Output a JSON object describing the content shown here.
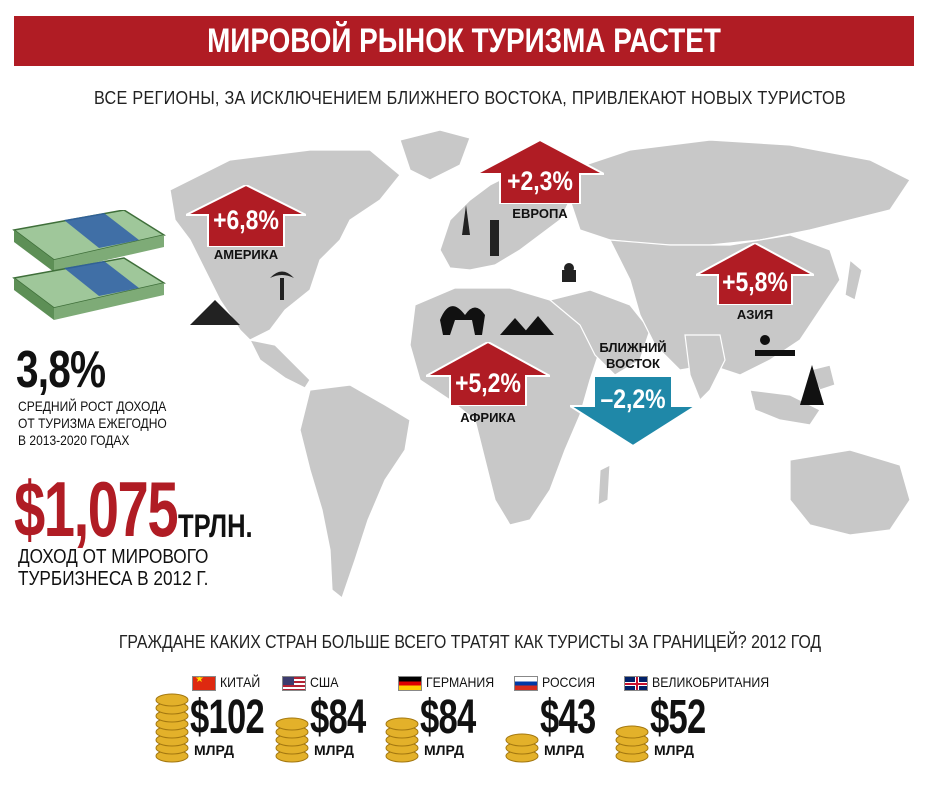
{
  "header": {
    "title": "МИРОВОЙ РЫНОК ТУРИЗМА РАСТЕТ",
    "subtitle": "ВСЕ РЕГИОНЫ, ЗА ИСКЛЮЧЕНИЕМ БЛИЖНЕГО ВОСТОКА, ПРИВЛЕКАЮТ НОВЫХ ТУРИСТОВ"
  },
  "colors": {
    "accent_red": "#b01c24",
    "decline_blue": "#1f88a8",
    "map_gray": "#c8c8c8",
    "gold": "#e3b12a"
  },
  "regions": [
    {
      "label": "АМЕРИКА",
      "value": "+6,8%",
      "direction": "up"
    },
    {
      "label": "ЕВРОПА",
      "value": "+2,3%",
      "direction": "up"
    },
    {
      "label": "АЗИЯ",
      "value": "+5,8%",
      "direction": "up"
    },
    {
      "label": "АФРИКА",
      "value": "+5,2%",
      "direction": "up"
    },
    {
      "label": "БЛИЖНИЙ ВОСТОК",
      "value": "–2,2%",
      "direction": "down"
    }
  ],
  "stats": {
    "growth_value": "3,8%",
    "growth_desc_1": "СРЕДНИЙ РОСТ ДОХОДА",
    "growth_desc_2": "ОТ ТУРИЗМА ЕЖЕГОДНО",
    "growth_desc_3": "В 2013-2020 ГОДАХ",
    "income_value": "$1,075",
    "income_unit": "ТРЛН.",
    "income_desc_1": "ДОХОД ОТ МИРОВОГО",
    "income_desc_2": "ТУРБИЗНЕСА В 2012 Г."
  },
  "spending": {
    "title": "ГРАЖДАНЕ КАКИХ СТРАН БОЛЬШЕ ВСЕГО ТРАТЯТ КАК ТУРИСТЫ ЗА ГРАНИЦЕЙ? 2012 ГОД",
    "unit": "МЛРД",
    "countries": [
      {
        "name": "КИТАЙ",
        "amount": "$102",
        "flag": "china-flag-icon"
      },
      {
        "name": "США",
        "amount": "$84",
        "flag": "usa-flag-icon"
      },
      {
        "name": "ГЕРМАНИЯ",
        "amount": "$84",
        "flag": "germany-flag-icon"
      },
      {
        "name": "РОССИЯ",
        "amount": "$43",
        "flag": "russia-flag-icon"
      },
      {
        "name": "ВЕЛИКОБРИТАНИЯ",
        "amount": "$52",
        "flag": "uk-flag-icon"
      }
    ]
  },
  "icons": [
    "money-stack-icon",
    "pyramid-icon",
    "palm-tree-icon",
    "eiffel-tower-icon",
    "pisa-tower-icon",
    "camel-icon",
    "egypt-pyramids-icon",
    "mosque-icon",
    "massage-icon",
    "temple-icon",
    "coin-stack-icon"
  ]
}
